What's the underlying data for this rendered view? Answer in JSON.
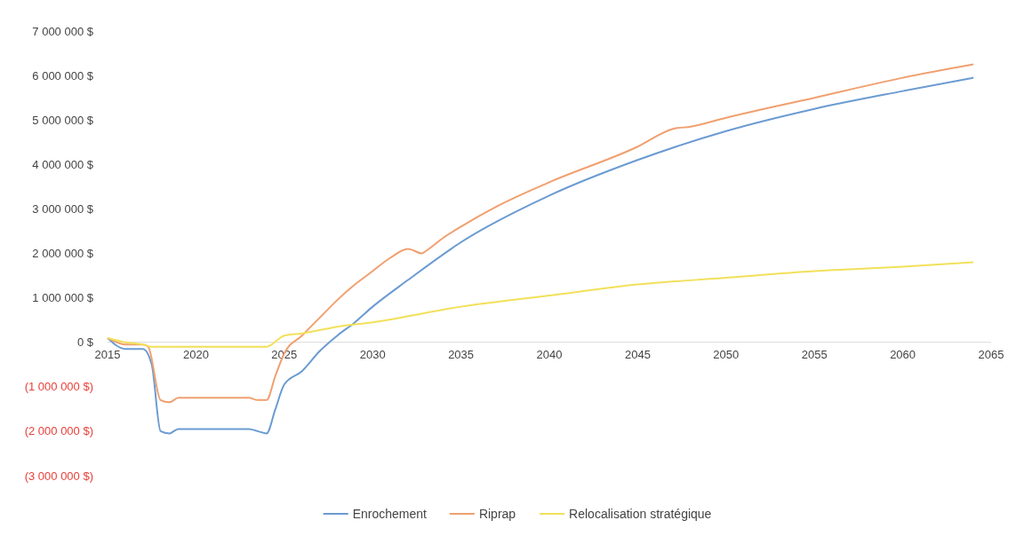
{
  "chart_data": {
    "type": "line",
    "xlim": [
      2015,
      2065
    ],
    "xticks": [
      2015,
      2020,
      2025,
      2030,
      2035,
      2040,
      2045,
      2050,
      2055,
      2060,
      2065
    ],
    "ylim": [
      -3000000,
      7000000
    ],
    "yticks": [
      {
        "value": -3000000,
        "label": "(3 000 000 $)"
      },
      {
        "value": -2000000,
        "label": "(2 000 000 $)"
      },
      {
        "value": -1000000,
        "label": "(1 000 000 $)"
      },
      {
        "value": 0,
        "label": "0 $"
      },
      {
        "value": 1000000,
        "label": "1 000 000 $"
      },
      {
        "value": 2000000,
        "label": "2 000 000 $"
      },
      {
        "value": 3000000,
        "label": "3 000 000 $"
      },
      {
        "value": 4000000,
        "label": "4 000 000 $"
      },
      {
        "value": 5000000,
        "label": "5 000 000 $"
      },
      {
        "value": 6000000,
        "label": "6 000 000 $"
      },
      {
        "value": 7000000,
        "label": "7 000 000 $"
      }
    ],
    "grid": false,
    "legend": "bottom",
    "marker": "none",
    "line_style": "solid",
    "series": [
      {
        "name": "Enrochement",
        "color": "#6b9bd2",
        "x": [
          2015,
          2016,
          2017,
          2017.5,
          2018,
          2018.5,
          2019,
          2021,
          2023,
          2023.5,
          2024,
          2024.5,
          2025,
          2026,
          2027,
          2028,
          2029,
          2030,
          2032,
          2035,
          2040,
          2045,
          2050,
          2055,
          2060,
          2064
        ],
        "values": [
          100000,
          -150000,
          -150000,
          -500000,
          -2000000,
          -2050000,
          -1950000,
          -1950000,
          -1950000,
          -2000000,
          -2050000,
          -1500000,
          -950000,
          -650000,
          -200000,
          150000,
          450000,
          800000,
          1400000,
          2250000,
          3300000,
          4100000,
          4750000,
          5250000,
          5650000,
          5950000
        ]
      },
      {
        "name": "Riprap",
        "color": "#f0a070",
        "x": [
          2015,
          2016,
          2017,
          2017.3,
          2018,
          2018.5,
          2019,
          2021,
          2023,
          2023.5,
          2024,
          2024.5,
          2025,
          2026,
          2027,
          2028,
          2029,
          2030,
          2031,
          2032,
          2032.8,
          2033,
          2034,
          2035,
          2037,
          2040,
          2045,
          2047,
          2048,
          2050,
          2055,
          2060,
          2064
        ],
        "values": [
          100000,
          -50000,
          -50000,
          -100000,
          -1300000,
          -1350000,
          -1250000,
          -1250000,
          -1250000,
          -1300000,
          -1300000,
          -750000,
          -250000,
          150000,
          550000,
          950000,
          1300000,
          1600000,
          1900000,
          2100000,
          2000000,
          2050000,
          2350000,
          2600000,
          3050000,
          3600000,
          4400000,
          4800000,
          4850000,
          5050000,
          5500000,
          5950000,
          6250000
        ]
      },
      {
        "name": "Relocalisation stratégique",
        "color": "#f2e05a",
        "x": [
          2015,
          2016,
          2017,
          2017.5,
          2018,
          2021,
          2024,
          2025,
          2026,
          2028,
          2030,
          2035,
          2040,
          2045,
          2050,
          2055,
          2060,
          2064
        ],
        "values": [
          100000,
          0,
          -50000,
          -100000,
          -100000,
          -100000,
          -100000,
          150000,
          200000,
          350000,
          450000,
          800000,
          1050000,
          1300000,
          1450000,
          1600000,
          1700000,
          1800000
        ]
      }
    ]
  }
}
